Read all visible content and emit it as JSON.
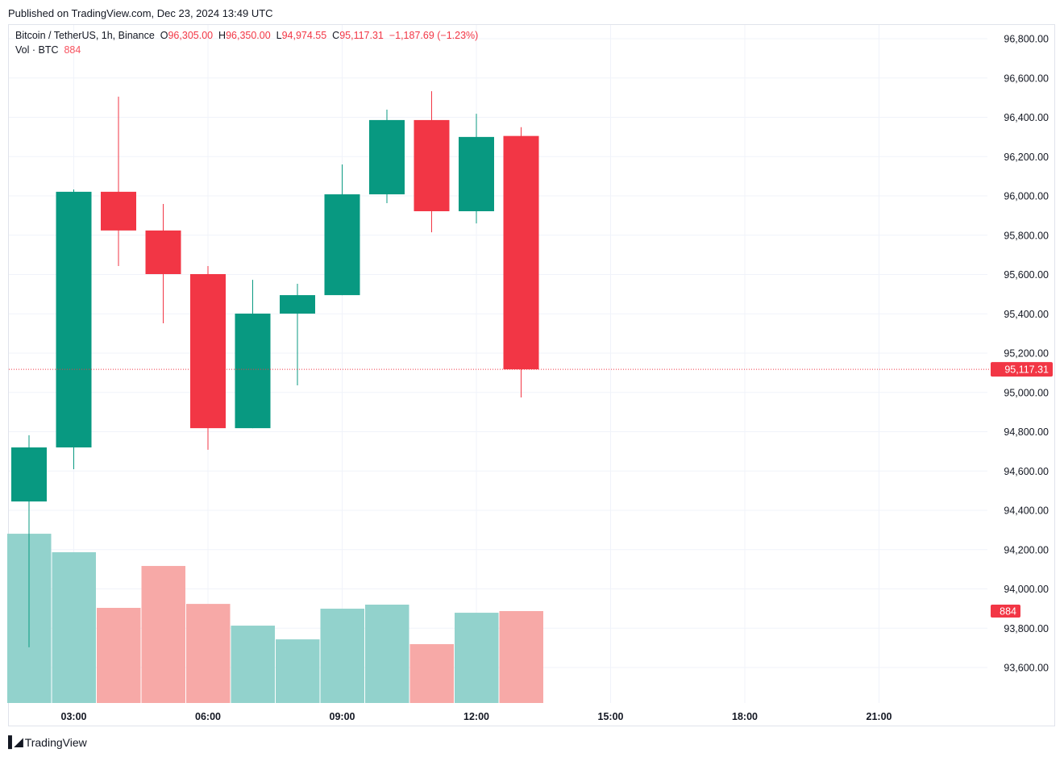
{
  "published": "Published on TradingView.com, Dec 23, 2024 13:49 UTC",
  "legend": {
    "symbol": "Bitcoin / TetherUS, 1h, Binance",
    "o_label": "O",
    "o_value": "96,305.00",
    "h_label": "H",
    "h_value": "96,350.00",
    "l_label": "L",
    "l_value": "94,974.55",
    "c_label": "C",
    "c_value": "95,117.31",
    "change": "−1,187.69 (−1.23%)",
    "vol_label": "Vol · BTC",
    "vol_value": "884"
  },
  "brand": {
    "logo": "TV",
    "name": "TradingView"
  },
  "colors": {
    "up": "#089981",
    "down": "#f23645",
    "vol_up": "#92d2cc",
    "vol_down": "#f7a9a7",
    "grid": "#f0f3fa"
  },
  "chart_data": {
    "type": "candlestick",
    "title": "Bitcoin / TetherUS, 1h, Binance",
    "x": [
      "02:00",
      "03:00",
      "04:00",
      "05:00",
      "06:00",
      "07:00",
      "08:00",
      "09:00",
      "10:00",
      "11:00",
      "12:00",
      "13:00"
    ],
    "open": [
      94445,
      94720,
      96021,
      95824,
      95602,
      94818,
      95401,
      95495,
      96008,
      96386,
      95922,
      96305.0
    ],
    "high": [
      94782,
      96033,
      96505,
      95959,
      95643,
      95573,
      95553,
      96160,
      96439,
      96533,
      96418,
      96350.0
    ],
    "low": [
      93703,
      94609,
      95643,
      95352,
      94708,
      94818,
      95036,
      95495,
      95963,
      95815,
      95860,
      94974.55
    ],
    "close": [
      94720,
      96021,
      95824,
      95602,
      94818,
      95401,
      95495,
      96008,
      96386,
      95922,
      96300,
      95117.31
    ],
    "volume": [
      1628,
      1450,
      915,
      1318,
      953,
      744,
      612,
      907,
      946,
      566,
      868,
      884
    ],
    "last_price": "95,117.31",
    "last_volume": "884",
    "x_ticks": [
      "03:00",
      "06:00",
      "09:00",
      "12:00",
      "15:00",
      "18:00",
      "21:00"
    ],
    "y_ticks": [
      "96,800.00",
      "96,600.00",
      "96,400.00",
      "96,200.00",
      "96,000.00",
      "95,800.00",
      "95,600.00",
      "95,400.00",
      "95,200.00",
      "95,000.00",
      "94,800.00",
      "94,600.00",
      "94,400.00",
      "94,200.00",
      "94,000.00",
      "93,800.00",
      "93,600.00"
    ],
    "ylim": [
      93600,
      96800
    ],
    "grid": true
  }
}
